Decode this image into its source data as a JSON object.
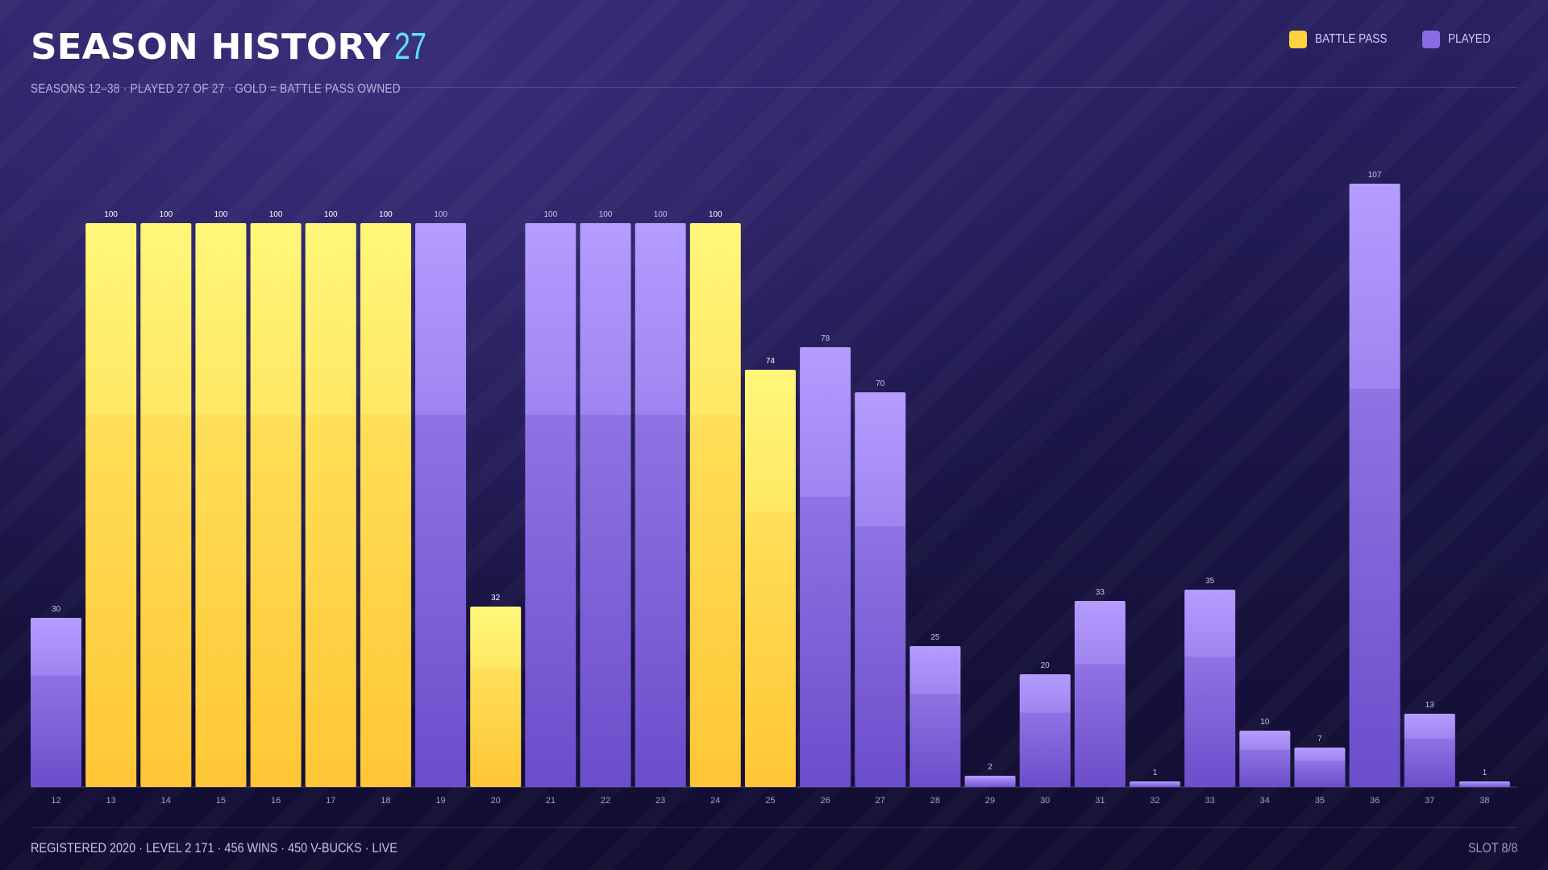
{
  "header": {
    "title": "SEASON HISTORY",
    "count": "27",
    "subtitle": "SEASONS 12–38 · PLAYED 27 OF 27 · GOLD = BATTLE PASS OWNED"
  },
  "legend": [
    {
      "label": "BATTLE PASS",
      "color": "#ffd23f"
    },
    {
      "label": "PLAYED",
      "color": "#8a6ce6"
    }
  ],
  "colors": {
    "battle_pass_top": "#fff778",
    "battle_pass_bottom": "#ffc83a",
    "played_top": "#b69cff",
    "played_bottom": "#7a5bd8",
    "accent": "#5ee2f2"
  },
  "chart_data": {
    "type": "bar",
    "title": "SEASON HISTORY",
    "categories": [
      "12",
      "13",
      "14",
      "15",
      "16",
      "17",
      "18",
      "19",
      "20",
      "21",
      "22",
      "23",
      "24",
      "25",
      "26",
      "27",
      "28",
      "29",
      "30",
      "31",
      "32",
      "33",
      "34",
      "35",
      "36",
      "37",
      "38"
    ],
    "values": [
      30,
      100,
      100,
      100,
      100,
      100,
      100,
      100,
      32,
      100,
      100,
      100,
      100,
      74,
      78,
      70,
      25,
      2,
      20,
      33,
      1,
      35,
      10,
      7,
      107,
      13,
      1
    ],
    "battle_pass": [
      false,
      true,
      true,
      true,
      true,
      true,
      true,
      false,
      true,
      false,
      false,
      false,
      true,
      true,
      false,
      false,
      false,
      false,
      false,
      false,
      false,
      false,
      false,
      false,
      false,
      false,
      false
    ],
    "ylim": [
      0,
      107
    ],
    "grid": false,
    "legend_position": "top-right"
  },
  "footer": {
    "stats": "REGISTERED 2020 · LEVEL 2 171 · 456 WINS · 450 V-BUCKS · LIVE",
    "slot": "SLOT 8/8"
  }
}
